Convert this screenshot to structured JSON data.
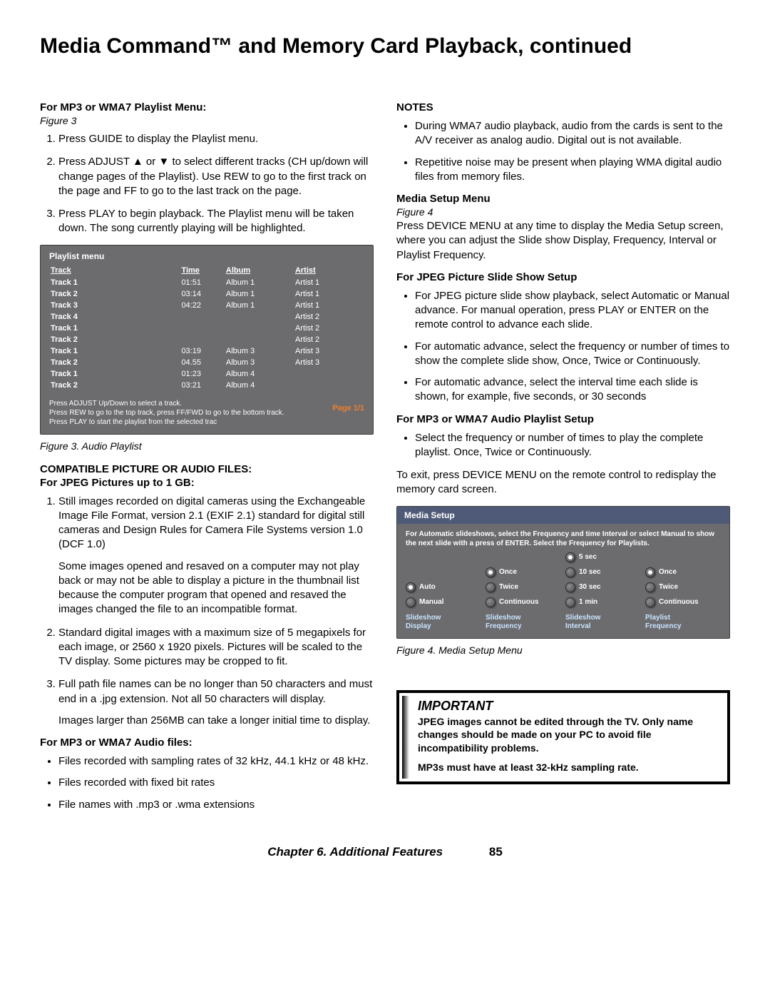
{
  "title": "Media Command™ and Memory Card Playback, continued",
  "left": {
    "h1": "For MP3 or WMA7 Playlist Menu:",
    "h1_fig": "Figure 3",
    "steps1": [
      "Press GUIDE to display the Playlist menu.",
      "Press ADJUST ▲ or ▼ to select different tracks (CH up/down will change pages of the Playlist).  Use REW to go to the first track on the page and FF to go to the last track on the page.",
      "Press PLAY to begin playback.  The Playlist menu will be taken down. The song currently playing will be highlighted."
    ],
    "playlist": {
      "title": "Playlist menu",
      "headers": {
        "track": "Track",
        "time": "Time",
        "album": "Album",
        "artist": "Artist"
      },
      "rows": [
        {
          "track": "Track 1",
          "time": "01:51",
          "album": "Album 1",
          "artist": "Artist 1"
        },
        {
          "track": "Track 2",
          "time": "03:14",
          "album": "Album 1",
          "artist": "Artist 1"
        },
        {
          "track": "Track 3",
          "time": "04:22",
          "album": "Album 1",
          "artist": "Artist 1"
        },
        {
          "track": "Track 4",
          "time": "",
          "album": "",
          "artist": "Artist 2"
        },
        {
          "track": "Track 1",
          "time": "",
          "album": "",
          "artist": "Artist 2"
        },
        {
          "track": "Track 2",
          "time": "",
          "album": "",
          "artist": "Artist 2"
        },
        {
          "track": "Track 1",
          "time": "03:19",
          "album": "Album 3",
          "artist": "Artist 3"
        },
        {
          "track": "Track 2",
          "time": "04.55",
          "album": "Album 3",
          "artist": "Artist 3"
        },
        {
          "track": "Track 1",
          "time": "01:23",
          "album": "Album 4",
          "artist": ""
        },
        {
          "track": "Track 2",
          "time": "03:21",
          "album": "Album 4",
          "artist": ""
        }
      ],
      "instr1": "Press ADJUST Up/Down to select a track.",
      "instr2": "Press REW to go to the top track, press FF/FWD to go to the bottom track.",
      "instr3": "Press PLAY to start the playlist from the selected trac",
      "page": "Page 1/1"
    },
    "fig3_caption": "Figure 3.  Audio Playlist",
    "h2a": "COMPATIBLE PICTURE OR AUDIO FILES:",
    "h2b": "For JPEG Pictures up to 1 GB:",
    "steps2": [
      {
        "t": "Still images recorded on digital cameras using the Exchangeable Image File Format, version 2.1 (EXIF 2.1) standard for digital still cameras and Design Rules for Camera File Systems version 1.0 (DCF 1.0)",
        "p": "Some images opened and resaved on a computer may not play back or may not be able to display a picture in the thumbnail list because the computer program that opened and resaved the images changed the file to an incompatible format."
      },
      {
        "t": "Standard digital images with a maximum size of 5 megapixels for each image, or 2560 x 1920 pixels. Pictures will be scaled to the TV display.  Some pictures may be cropped to fit.",
        "p": ""
      },
      {
        "t": "Full path file names can be no longer than 50 characters and must end in a .jpg extension.  Not all 50 characters will display.",
        "p": "Images larger than 256MB can take a longer initial time to display."
      }
    ],
    "h3": "For MP3 or WMA7 Audio files:",
    "bullets3": [
      "Files recorded with sampling rates of 32 kHz, 44.1 kHz or 48 kHz.",
      "Files recorded with fixed bit rates",
      "File names with .mp3 or .wma extensions"
    ]
  },
  "right": {
    "notes_h": "NOTES",
    "notes": [
      "During WMA7 audio playback, audio from the cards is sent to the A/V receiver as analog audio.  Digital out is not available.",
      "Repetitive noise may be present when playing WMA digital audio files from memory files."
    ],
    "setup_h": "Media Setup Menu",
    "setup_fig": "Figure 4",
    "setup_intro": "Press DEVICE MENU at any time to display the Media Setup screen, where you can adjust the Slide show Display, Frequency, Interval or Playlist Frequency.",
    "jpeg_h": "For JPEG Picture Slide Show Setup",
    "jpeg_bullets": [
      "For JPEG picture slide show playback, select Automatic or Manual advance.  For manual operation, press PLAY or ENTER on the remote control to advance each slide.",
      "For automatic advance, select the frequency or number of times to show the complete slide show, Once, Twice or Continuously.",
      "For automatic advance, select the interval time each slide is shown, for example, five seconds, or 30 seconds"
    ],
    "mp3_h": "For MP3 or WMA7 Audio Playlist Setup",
    "mp3_bullets": [
      "Select the frequency or number of times to play the complete playlist.  Once, Twice or Continuously."
    ],
    "exit_text": "To exit, press DEVICE MENU on the remote control to redisplay the memory card screen.",
    "setup": {
      "header": "Media Setup",
      "desc": "For Automatic slideshows, select the Frequency and time Interval or select Manual to show the next slide with a press of ENTER. Select the Frequency for Playlists.",
      "cols": [
        {
          "hdr": "Slideshow\nDisplay",
          "opts": [
            {
              "l": "Auto",
              "sel": true
            },
            {
              "l": "Manual",
              "sel": false
            }
          ]
        },
        {
          "hdr": "Slideshow\nFrequency",
          "opts": [
            {
              "l": "Once",
              "sel": true
            },
            {
              "l": "Twice",
              "sel": false
            },
            {
              "l": "Continuous",
              "sel": false
            }
          ]
        },
        {
          "hdr": "Slideshow\nInterval",
          "opts": [
            {
              "l": "5 sec",
              "sel": true
            },
            {
              "l": "10 sec",
              "sel": false
            },
            {
              "l": "30 sec",
              "sel": false
            },
            {
              "l": "1 min",
              "sel": false
            }
          ]
        },
        {
          "hdr": "Playlist\nFrequency",
          "opts": [
            {
              "l": "Once",
              "sel": true
            },
            {
              "l": "Twice",
              "sel": false
            },
            {
              "l": "Continuous",
              "sel": false
            }
          ]
        }
      ]
    },
    "fig4_caption": "Figure 4.  Media Setup Menu",
    "important_title": "IMPORTANT",
    "important_p1": "JPEG images cannot be edited through the TV. Only name changes should be made on your PC to avoid file incompatibility problems.",
    "important_p2": "MP3s must have at least 32-kHz sampling rate."
  },
  "footer": {
    "chapter": "Chapter 6. Additional Features",
    "page": "85"
  }
}
